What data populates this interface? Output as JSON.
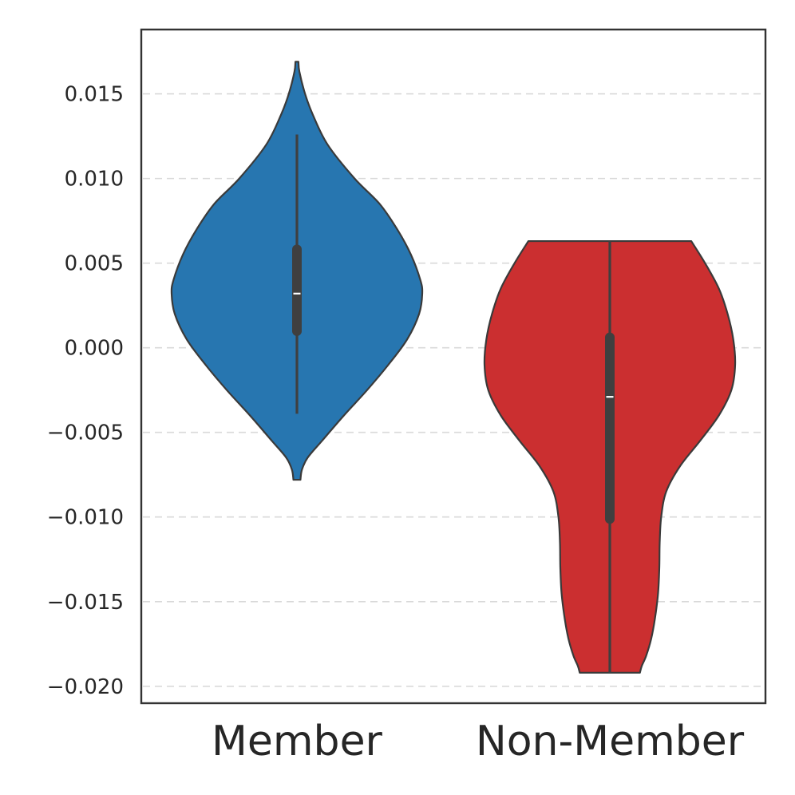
{
  "chart_data": {
    "type": "violin",
    "title": "",
    "xlabel": "",
    "ylabel": "",
    "ylim": [
      -0.021,
      0.0188
    ],
    "yticks": [
      0.015,
      0.01,
      0.005,
      0.0,
      -0.005,
      -0.01,
      -0.015,
      -0.02
    ],
    "ytick_labels": [
      "0.015",
      "0.010",
      "0.005",
      "0.000",
      "−0.005",
      "−0.010",
      "−0.015",
      "−0.020"
    ],
    "grid": {
      "y": true,
      "style": "dashed"
    },
    "categories": [
      "Member",
      "Non-Member"
    ],
    "series": [
      {
        "category": "Member",
        "color": "#2776b0",
        "min": -0.0078,
        "max": 0.0169,
        "whisker_low": -0.0039,
        "whisker_high": 0.0126,
        "q1": 0.0007,
        "median": 0.0032,
        "q3": 0.0061,
        "density_profile": [
          [
            0.0169,
            0.012
          ],
          [
            0.0163,
            0.02
          ],
          [
            0.015,
            0.065
          ],
          [
            0.0138,
            0.125
          ],
          [
            0.012,
            0.245
          ],
          [
            0.01,
            0.46
          ],
          [
            0.0085,
            0.66
          ],
          [
            0.007,
            0.8
          ],
          [
            0.0055,
            0.91
          ],
          [
            0.004,
            0.985
          ],
          [
            0.0032,
            1.0
          ],
          [
            0.002,
            0.975
          ],
          [
            0.0005,
            0.88
          ],
          [
            -0.001,
            0.73
          ],
          [
            -0.0025,
            0.56
          ],
          [
            -0.004,
            0.375
          ],
          [
            -0.0055,
            0.2
          ],
          [
            -0.0065,
            0.085
          ],
          [
            -0.0072,
            0.04
          ],
          [
            -0.0078,
            0.028
          ]
        ]
      },
      {
        "category": "Non-Member",
        "color": "#cb2f30",
        "min": -0.0192,
        "max": 0.0063,
        "whisker_low": -0.0192,
        "whisker_high": 0.0063,
        "q1": -0.0104,
        "median": -0.0029,
        "q3": 0.0009,
        "density_profile": [
          [
            0.0063,
            0.65
          ],
          [
            0.005,
            0.76
          ],
          [
            0.0035,
            0.87
          ],
          [
            0.002,
            0.94
          ],
          [
            0.0005,
            0.985
          ],
          [
            -0.001,
            1.0
          ],
          [
            -0.0025,
            0.97
          ],
          [
            -0.004,
            0.87
          ],
          [
            -0.0055,
            0.72
          ],
          [
            -0.007,
            0.56
          ],
          [
            -0.0085,
            0.45
          ],
          [
            -0.01,
            0.41
          ],
          [
            -0.0115,
            0.398
          ],
          [
            -0.013,
            0.395
          ],
          [
            -0.0145,
            0.385
          ],
          [
            -0.016,
            0.36
          ],
          [
            -0.0172,
            0.33
          ],
          [
            -0.0182,
            0.29
          ],
          [
            -0.0188,
            0.255
          ],
          [
            -0.0192,
            0.24
          ]
        ]
      }
    ]
  }
}
